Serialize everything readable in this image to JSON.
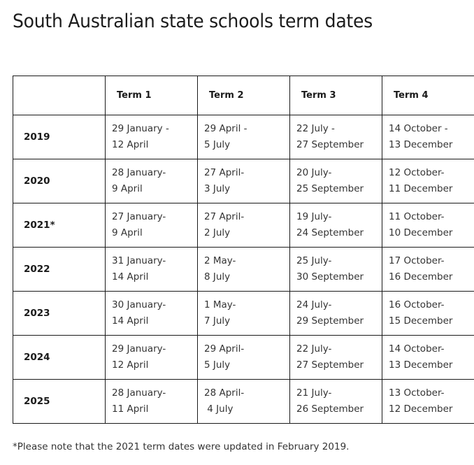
{
  "page": {
    "title": "South Australian state schools term dates",
    "footnote": "*Please note that the 2021 term dates were updated in February 2019."
  },
  "table": {
    "headers": [
      "",
      "Term 1",
      "Term 2",
      "Term 3",
      "Term 4"
    ],
    "rows": [
      {
        "year": "2019",
        "terms": [
          {
            "start": "29 January -",
            "end": "12 April"
          },
          {
            "start": "29 April -",
            "end": "5 July"
          },
          {
            "start": "22 July -",
            "end": "27 September"
          },
          {
            "start": "14 October -",
            "end": "13 December"
          }
        ]
      },
      {
        "year": "2020",
        "terms": [
          {
            "start": "28 January-",
            "end": "9 April"
          },
          {
            "start": "27 April-",
            "end": "3 July"
          },
          {
            "start": "20 July-",
            "end": "25 September"
          },
          {
            "start": "12 October-",
            "end": "11 December"
          }
        ]
      },
      {
        "year": "2021*",
        "terms": [
          {
            "start": "27 January-",
            "end": "9 April"
          },
          {
            "start": "27 April-",
            "end": "2 July"
          },
          {
            "start": "19 July-",
            "end": "24 September"
          },
          {
            "start": "11 October-",
            "end": "10 December"
          }
        ]
      },
      {
        "year": "2022",
        "terms": [
          {
            "start": "31 January-",
            "end": "14 April"
          },
          {
            "start": "2 May-",
            "end": "8 July"
          },
          {
            "start": "25 July-",
            "end": "30 September"
          },
          {
            "start": "17 October-",
            "end": "16 December"
          }
        ]
      },
      {
        "year": "2023",
        "terms": [
          {
            "start": "30 January-",
            "end": "14 April"
          },
          {
            "start": "1 May-",
            "end": "7 July"
          },
          {
            "start": "24 July-",
            "end": "29 September"
          },
          {
            "start": "16 October-",
            "end": "15 December"
          }
        ]
      },
      {
        "year": "2024",
        "terms": [
          {
            "start": "29 January-",
            "end": "12 April"
          },
          {
            "start": "29 April-",
            "end": "5 July"
          },
          {
            "start": "22 July-",
            "end": "27 September"
          },
          {
            "start": "14 October-",
            "end": "13 December"
          }
        ]
      },
      {
        "year": "2025",
        "terms": [
          {
            "start": "28 January-",
            "end": "11 April"
          },
          {
            "start": "28 April-",
            "end": " 4 July"
          },
          {
            "start": "21 July-",
            "end": "26 September"
          },
          {
            "start": "13 October-",
            "end": "12 December"
          }
        ]
      }
    ]
  }
}
